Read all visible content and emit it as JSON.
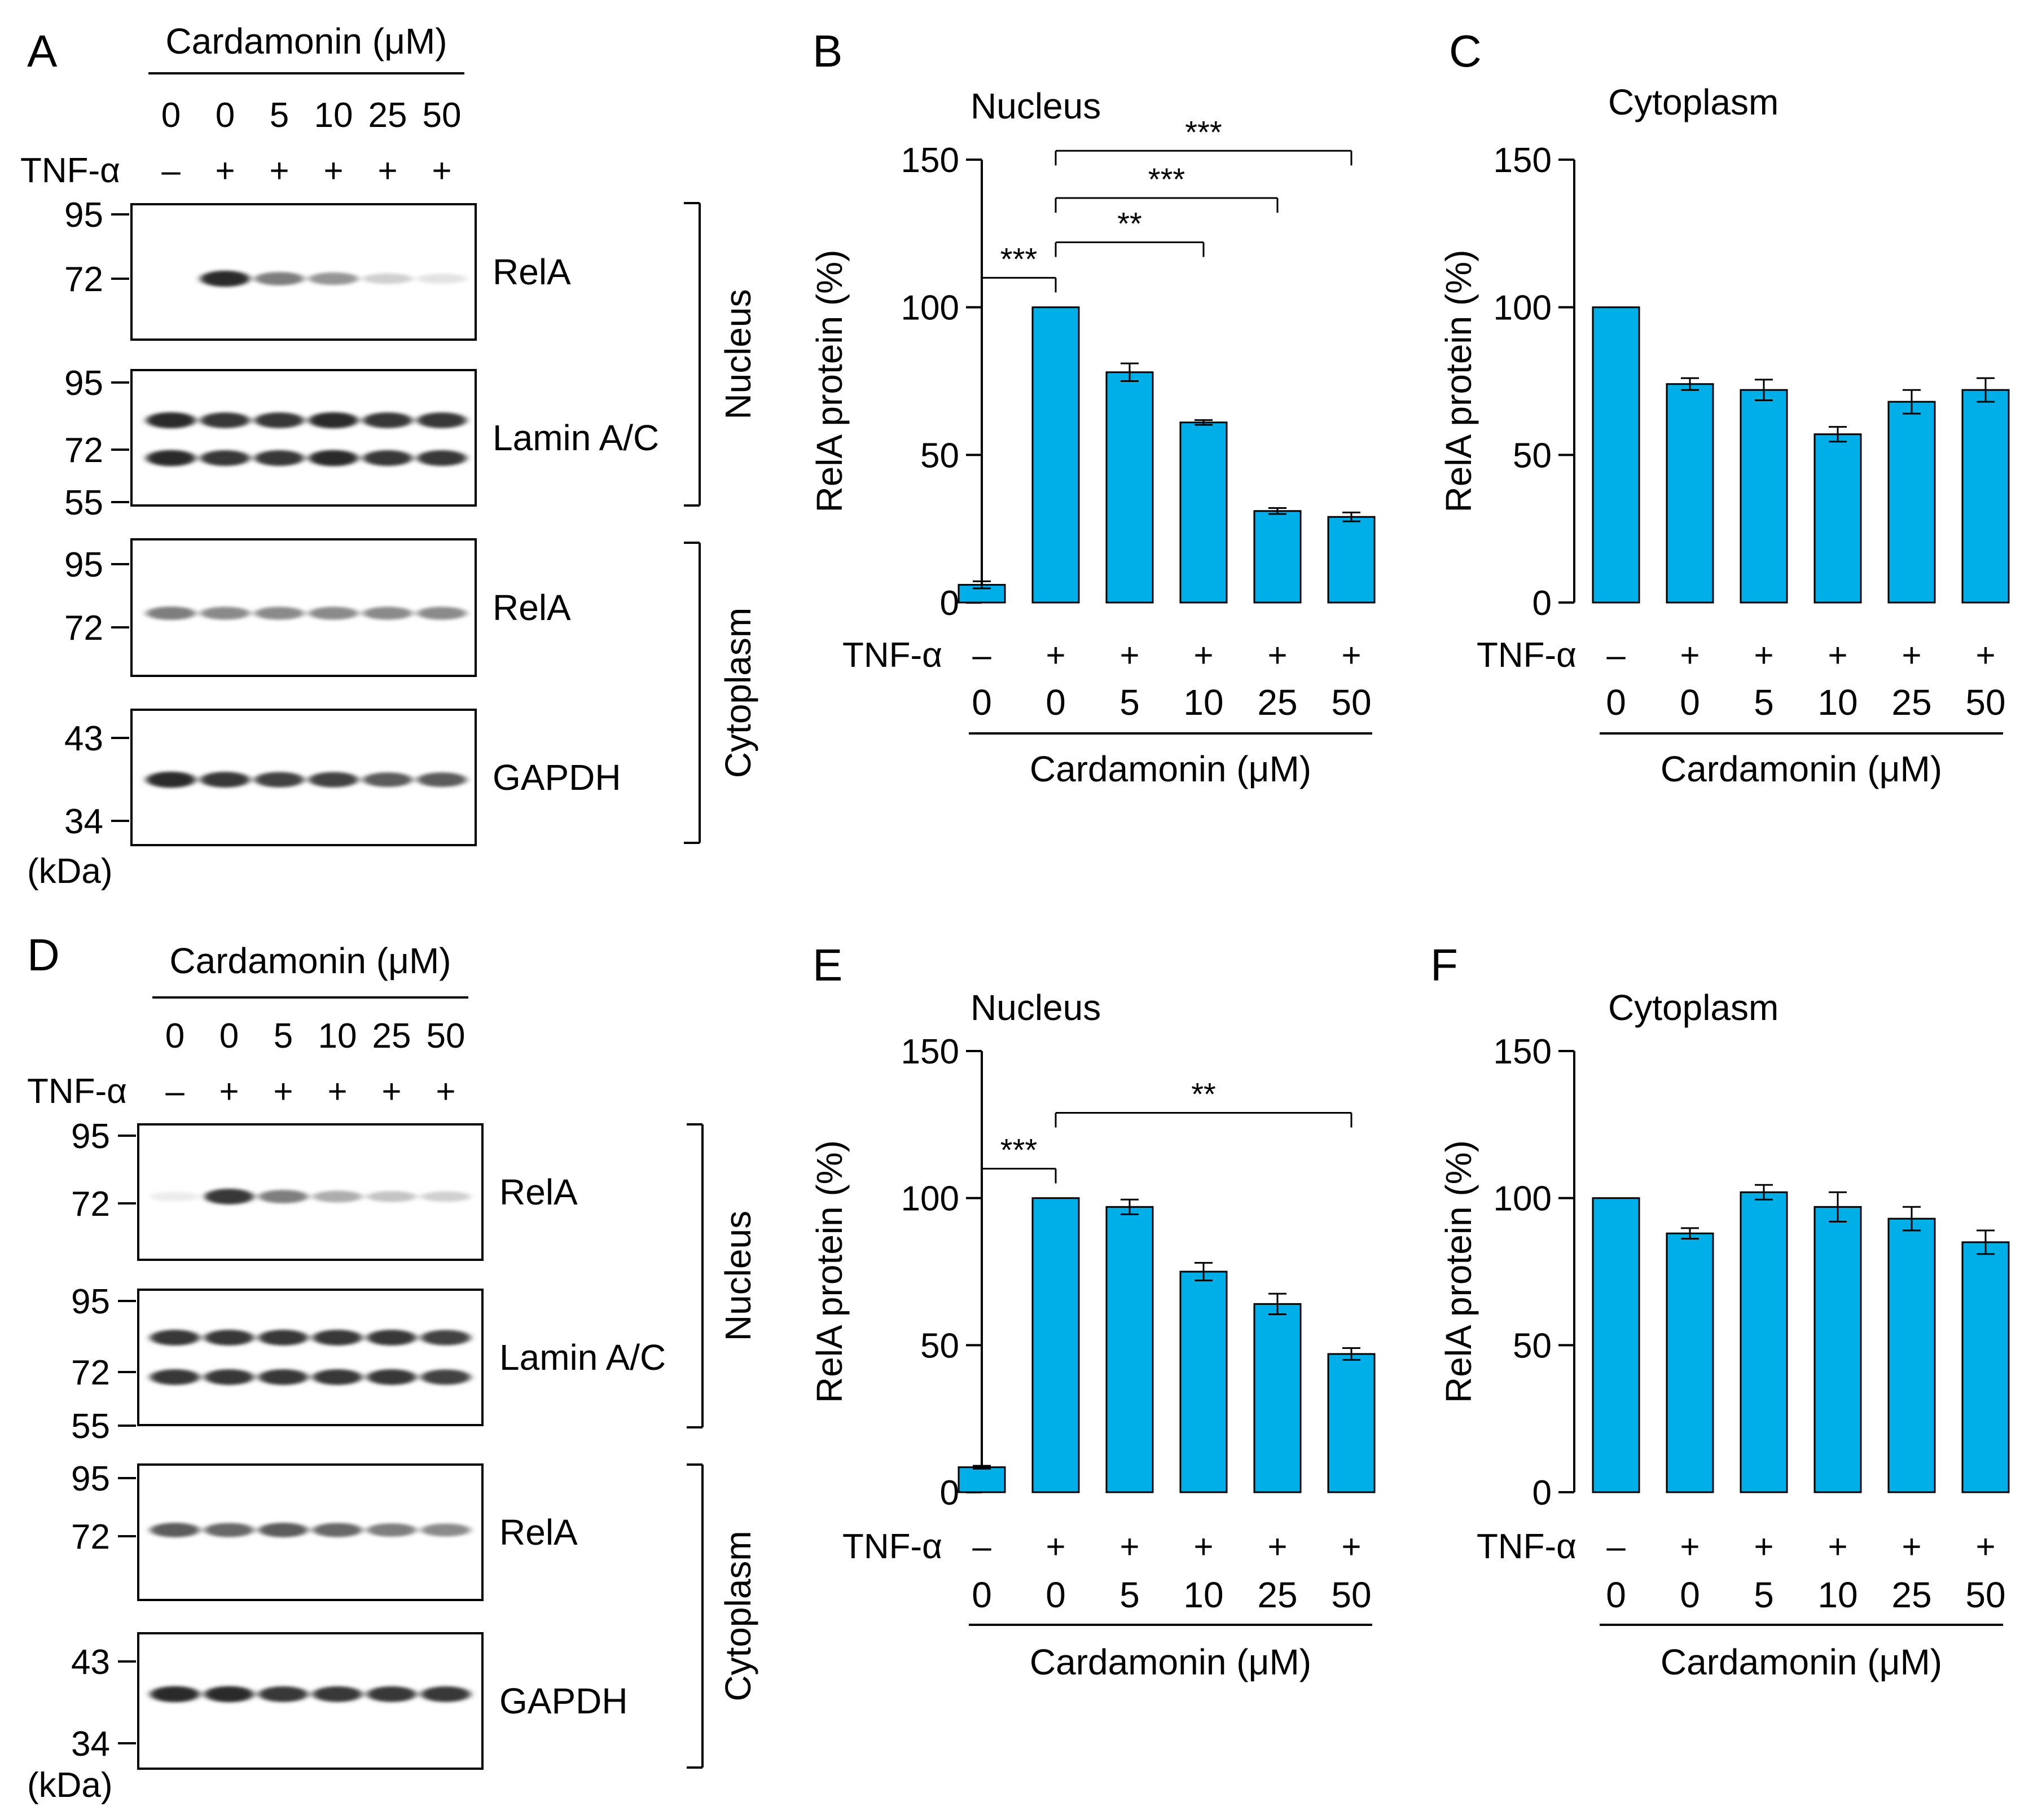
{
  "figure": {
    "colors": {
      "bar": "#00aee8",
      "ink": "#000000",
      "background": "#ffffff"
    }
  },
  "blots": [
    {
      "panel": "A",
      "header": "Cardamonin (μM)",
      "doses": [
        "0",
        "0",
        "5",
        "10",
        "25",
        "50"
      ],
      "tnf_label": "TNF-α",
      "tnf": [
        "–",
        "+",
        "+",
        "+",
        "+",
        "+"
      ],
      "unit": "(kDa)",
      "strips": [
        {
          "label": "RelA",
          "markers": [
            "95",
            "72"
          ],
          "lanes": [
            0.0,
            0.9,
            0.55,
            0.45,
            0.2,
            0.12
          ]
        },
        {
          "label": "Lamin A/C",
          "markers": [
            "95",
            "72",
            "55"
          ],
          "lanes": [
            0.9,
            0.85,
            0.85,
            0.9,
            0.85,
            0.85
          ]
        },
        {
          "label": "RelA",
          "markers": [
            "95",
            "72"
          ],
          "lanes": [
            0.55,
            0.5,
            0.5,
            0.5,
            0.5,
            0.5
          ]
        },
        {
          "label": "GAPDH",
          "markers": [
            "43",
            "34"
          ],
          "lanes": [
            0.9,
            0.85,
            0.8,
            0.8,
            0.7,
            0.7
          ]
        }
      ],
      "brackets": [
        "Nucleus",
        "Cytoplasm"
      ]
    },
    {
      "panel": "D",
      "header": "Cardamonin (μM)",
      "doses": [
        "0",
        "0",
        "5",
        "10",
        "25",
        "50"
      ],
      "tnf_label": "TNF-α",
      "tnf": [
        "–",
        "+",
        "+",
        "+",
        "+",
        "+"
      ],
      "unit": "(kDa)",
      "strips": [
        {
          "label": "RelA",
          "markers": [
            "95",
            "72"
          ],
          "lanes": [
            0.08,
            0.85,
            0.55,
            0.35,
            0.25,
            0.2
          ]
        },
        {
          "label": "Lamin A/C",
          "markers": [
            "95",
            "72",
            "55"
          ],
          "lanes": [
            0.85,
            0.85,
            0.85,
            0.85,
            0.85,
            0.8
          ]
        },
        {
          "label": "RelA",
          "markers": [
            "95",
            "72"
          ],
          "lanes": [
            0.7,
            0.65,
            0.7,
            0.65,
            0.55,
            0.5
          ]
        },
        {
          "label": "GAPDH",
          "markers": [
            "43",
            "34"
          ],
          "lanes": [
            0.9,
            0.9,
            0.85,
            0.85,
            0.85,
            0.85
          ]
        }
      ],
      "brackets": [
        "Nucleus",
        "Cytoplasm"
      ]
    }
  ],
  "chart_data": [
    {
      "panel": "B",
      "type": "bar",
      "title": "Nucleus",
      "ylabel": "RelA protein (%)",
      "ylim": [
        0,
        150
      ],
      "yticks": [
        0,
        50,
        100,
        150
      ],
      "xlabel": "Cardamonin (μM)",
      "row_label": "TNF-α",
      "tnf": [
        "–",
        "+",
        "+",
        "+",
        "+",
        "+"
      ],
      "categories": [
        "0",
        "0",
        "5",
        "10",
        "25",
        "50"
      ],
      "values": [
        6,
        100,
        78,
        61,
        31,
        29
      ],
      "errors": [
        1.2,
        0,
        3,
        0.8,
        1,
        1.5
      ],
      "significance": [
        {
          "from": 0,
          "to": 1,
          "label": "***",
          "level": 110
        },
        {
          "from": 1,
          "to": 3,
          "label": "**",
          "level": 122
        },
        {
          "from": 1,
          "to": 4,
          "label": "***",
          "level": 137
        },
        {
          "from": 1,
          "to": 5,
          "label": "***",
          "level": 153
        }
      ]
    },
    {
      "panel": "C",
      "type": "bar",
      "title": "Cytoplasm",
      "ylabel": "RelA protein (%)",
      "ylim": [
        0,
        150
      ],
      "yticks": [
        0,
        50,
        100,
        150
      ],
      "xlabel": "Cardamonin (μM)",
      "row_label": "TNF-α",
      "tnf": [
        "–",
        "+",
        "+",
        "+",
        "+",
        "+"
      ],
      "categories": [
        "0",
        "0",
        "5",
        "10",
        "25",
        "50"
      ],
      "values": [
        100,
        74,
        72,
        57,
        68,
        72
      ],
      "errors": [
        0,
        2,
        3.5,
        2.5,
        4,
        4
      ],
      "significance": []
    },
    {
      "panel": "E",
      "type": "bar",
      "title": "Nucleus",
      "ylabel": "RelA protein (%)",
      "ylim": [
        0,
        150
      ],
      "yticks": [
        0,
        50,
        100,
        150
      ],
      "xlabel": "Cardamonin (μM)",
      "row_label": "TNF-α",
      "tnf": [
        "–",
        "+",
        "+",
        "+",
        "+",
        "+"
      ],
      "categories": [
        "0",
        "0",
        "5",
        "10",
        "25",
        "50"
      ],
      "values": [
        8.5,
        100,
        97,
        75,
        64,
        47
      ],
      "errors": [
        0.5,
        0,
        2.5,
        3,
        3.5,
        2
      ],
      "significance": [
        {
          "from": 0,
          "to": 1,
          "label": "***",
          "level": 110
        },
        {
          "from": 1,
          "to": 5,
          "label": "**",
          "level": 129
        }
      ]
    },
    {
      "panel": "F",
      "type": "bar",
      "title": "Cytoplasm",
      "ylabel": "RelA protein (%)",
      "ylim": [
        0,
        150
      ],
      "yticks": [
        0,
        50,
        100,
        150
      ],
      "xlabel": "Cardamonin (μM)",
      "row_label": "TNF-α",
      "tnf": [
        "–",
        "+",
        "+",
        "+",
        "+",
        "+"
      ],
      "categories": [
        "0",
        "0",
        "5",
        "10",
        "25",
        "50"
      ],
      "values": [
        100,
        88,
        102,
        97,
        93,
        85
      ],
      "errors": [
        0,
        1.8,
        2.5,
        5,
        4,
        4
      ],
      "significance": []
    }
  ]
}
